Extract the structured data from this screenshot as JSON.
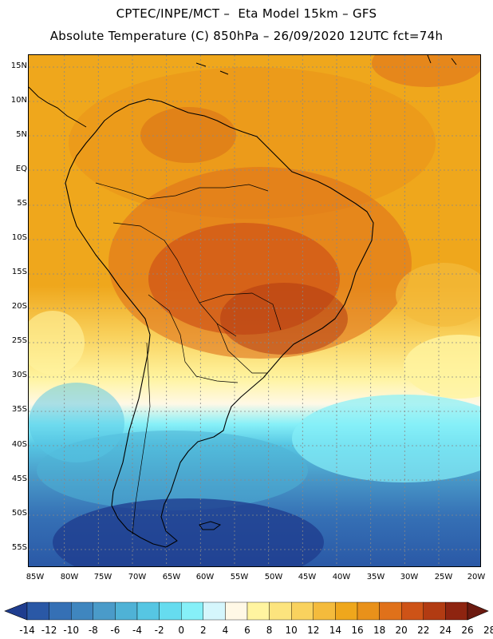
{
  "header": {
    "line1": "CPTEC/INPE/MCT –  Eta Model 15km – GFS",
    "line2": "Absolute Temperature (C) 850hPa – 26/09/2020 12UTC fct=74h"
  },
  "axes": {
    "lat_labels": [
      "15N",
      "10N",
      "5N",
      "EQ",
      "5S",
      "10S",
      "15S",
      "20S",
      "25S",
      "30S",
      "35S",
      "40S",
      "45S",
      "50S",
      "55S"
    ],
    "lon_labels": [
      "85W",
      "80W",
      "75W",
      "70W",
      "65W",
      "60W",
      "55W",
      "50W",
      "45W",
      "40W",
      "35W",
      "30W",
      "25W",
      "20W"
    ]
  },
  "colorbar": {
    "labels": [
      "-14",
      "-12",
      "-10",
      "-8",
      "-6",
      "-4",
      "-2",
      "0",
      "2",
      "4",
      "6",
      "8",
      "10",
      "12",
      "14",
      "16",
      "18",
      "20",
      "22",
      "24",
      "26",
      "28"
    ],
    "colors": [
      "#1f3d8f",
      "#2a58a6",
      "#3570b5",
      "#3f86bf",
      "#4a9bc9",
      "#4fb2d6",
      "#56c6e3",
      "#66dcef",
      "#86f0f8",
      "#d5f6fc",
      "#fff8e6",
      "#fff4a0",
      "#fce47e",
      "#f9d25e",
      "#f4bb3c",
      "#efa71c",
      "#e9911a",
      "#e0711a",
      "#ce5317",
      "#b23b12",
      "#8e2410",
      "#6b1a10"
    ]
  }
}
